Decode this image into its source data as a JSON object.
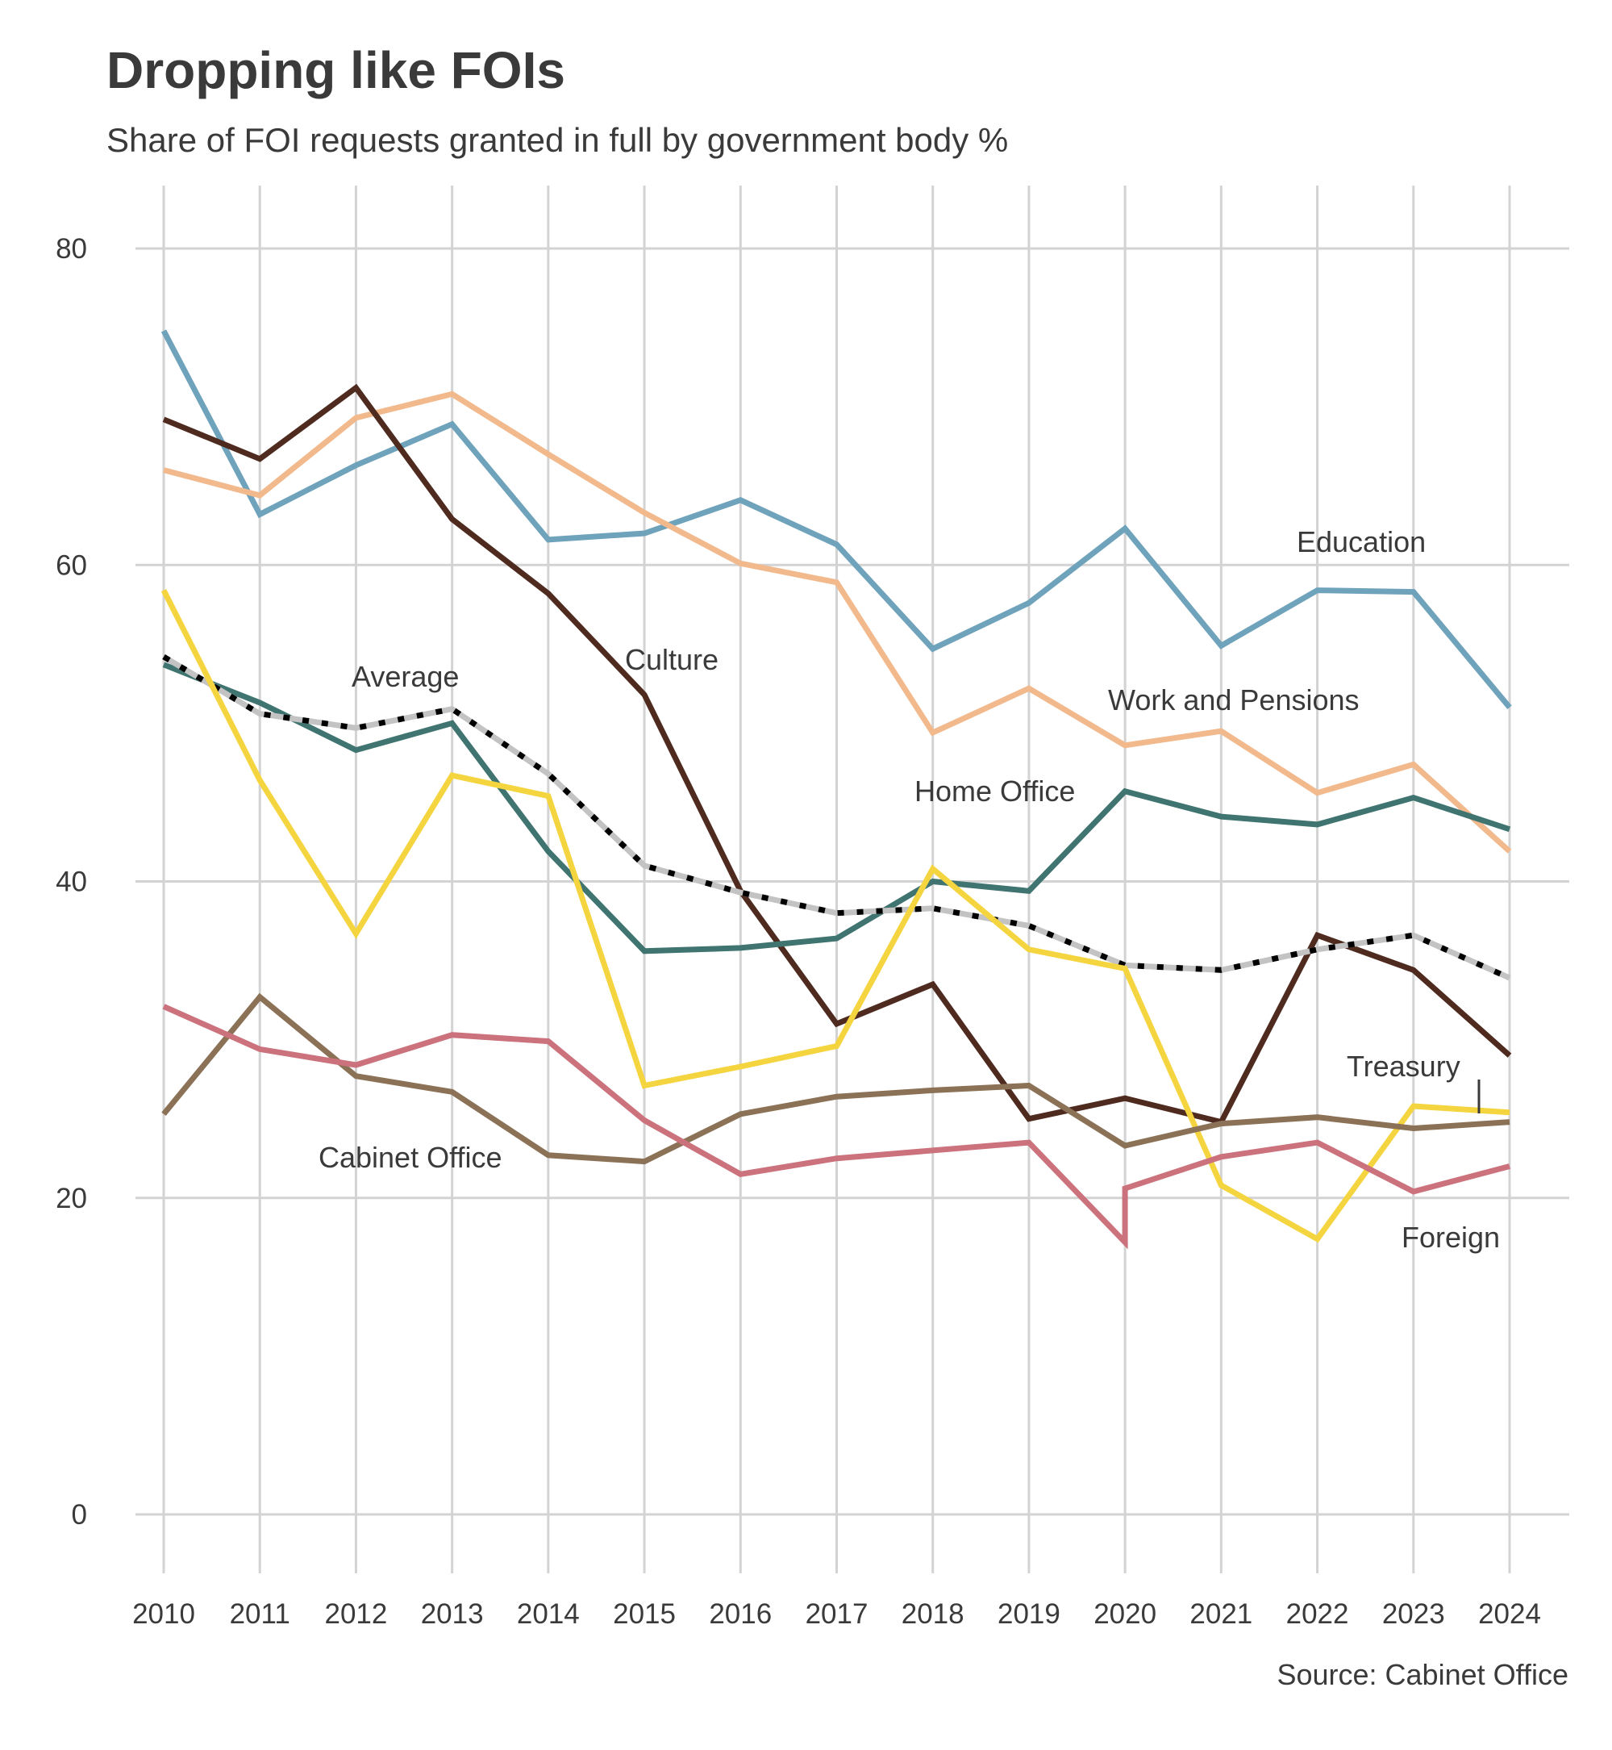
{
  "chart_data": {
    "type": "line",
    "title": "Dropping like FOIs",
    "subtitle": "Share of FOI requests granted in full by government body %",
    "source": "Source: Cabinet Office",
    "xlabel": "",
    "ylabel": "",
    "ylim": [
      -4,
      84
    ],
    "yticks": [
      0,
      20,
      40,
      60,
      80
    ],
    "grid": true,
    "x": [
      2010,
      2011,
      2012,
      2013,
      2014,
      2015,
      2016,
      2017,
      2018,
      2019,
      2020,
      2021,
      2022,
      2023,
      2024
    ],
    "series": [
      {
        "name": "Education",
        "color": "#6fa3bb",
        "values": [
          74.8,
          63.2,
          66.3,
          68.9,
          61.6,
          62.0,
          64.1,
          61.3,
          54.7,
          57.6,
          62.3,
          54.9,
          58.4,
          58.3,
          51.0
        ]
      },
      {
        "name": "Work and Pensions",
        "color": "#f2b98d",
        "values": [
          66.0,
          64.4,
          69.3,
          70.8,
          67.0,
          63.3,
          60.1,
          58.9,
          49.4,
          52.2,
          48.6,
          49.5,
          45.6,
          47.4,
          41.9
        ]
      },
      {
        "name": "Culture",
        "color": "#4e2a1f",
        "values": [
          69.2,
          66.7,
          71.2,
          62.9,
          58.2,
          51.8,
          39.4,
          31.0,
          33.5,
          25.0,
          26.3,
          24.8,
          36.6,
          34.4,
          29.0
        ]
      },
      {
        "name": "Home Office",
        "color": "#3f7470",
        "values": [
          53.7,
          51.3,
          48.3,
          50.0,
          41.9,
          35.6,
          35.8,
          36.4,
          40.0,
          39.4,
          45.7,
          44.1,
          43.6,
          45.3,
          43.3
        ]
      },
      {
        "name": "Average",
        "color": "#c3c3c3",
        "dashed": true,
        "values": [
          54.2,
          50.6,
          49.7,
          50.9,
          46.8,
          41.0,
          39.3,
          38.0,
          38.3,
          37.2,
          34.7,
          34.4,
          35.7,
          36.6,
          33.9
        ]
      },
      {
        "name": "Treasury",
        "color": "#f4d540",
        "values": [
          58.4,
          46.4,
          36.7,
          46.7,
          45.4,
          27.1,
          28.3,
          29.6,
          40.8,
          35.7,
          34.5,
          20.8,
          17.4,
          25.8,
          25.4
        ]
      },
      {
        "name": "Cabinet Office",
        "color": "#8b7156",
        "values": [
          25.3,
          32.7,
          27.7,
          26.7,
          22.7,
          22.3,
          25.3,
          26.4,
          26.8,
          27.1,
          23.3,
          24.7,
          25.1,
          24.4,
          24.8
        ]
      },
      {
        "name": "Foreign",
        "color": "#cc727d",
        "values": [
          32.1,
          29.4,
          28.4,
          30.3,
          29.9,
          24.9,
          21.5,
          22.5,
          23.0,
          23.5,
          17.2,
          22.6,
          23.5,
          20.4,
          22.0
        ],
        "note_2020_reported": 20.6
      }
    ],
    "labels": {
      "education": "Education",
      "work": "Work and Pensions",
      "culture": "Culture",
      "home": "Home Office",
      "average": "Average",
      "treasury": "Treasury",
      "cabinet": "Cabinet Office",
      "foreign": "Foreign"
    }
  }
}
